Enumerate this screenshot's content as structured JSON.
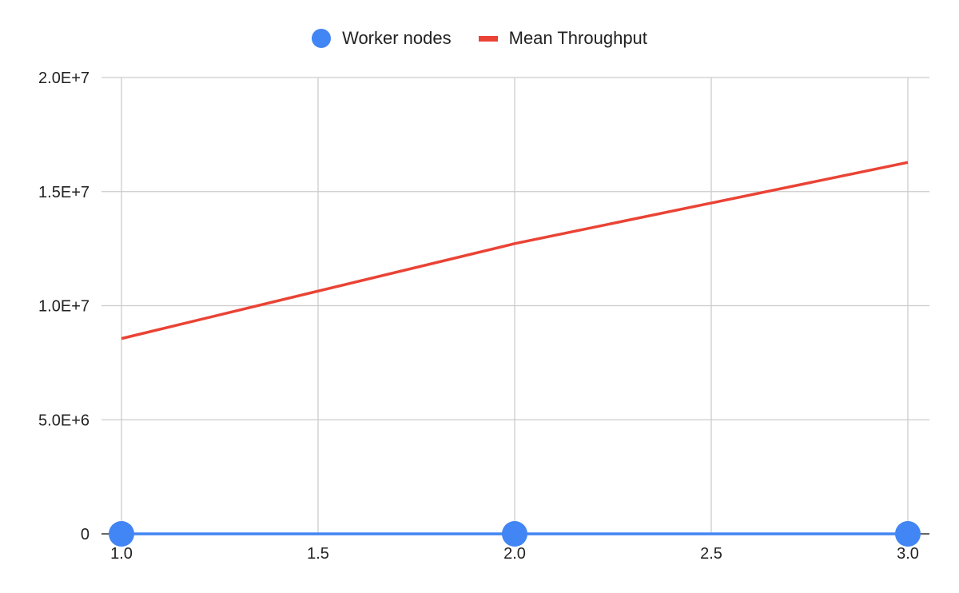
{
  "chart_data": {
    "type": "line",
    "title": "",
    "xlabel": "",
    "ylabel": "",
    "xlim": [
      1.0,
      3.0
    ],
    "ylim": [
      0,
      20000000
    ],
    "x_ticks": [
      "1.0",
      "1.5",
      "2.0",
      "2.5",
      "3.0"
    ],
    "x_tick_values": [
      1.0,
      1.5,
      2.0,
      2.5,
      3.0
    ],
    "y_ticks": [
      "0",
      "5.0E+6",
      "1.0E+7",
      "1.5E+7",
      "2.0E+7"
    ],
    "y_tick_values": [
      0,
      5000000,
      10000000,
      15000000,
      20000000
    ],
    "grid": true,
    "legend_position": "top-center",
    "series": [
      {
        "name": "Worker nodes",
        "style": "scatter-line",
        "color": "#4285f4",
        "x": [
          1,
          2,
          3
        ],
        "y": [
          1,
          2,
          3
        ]
      },
      {
        "name": "Mean Throughput",
        "style": "line",
        "color": "#ea4335",
        "x": [
          1,
          2,
          3
        ],
        "y": [
          8560000,
          12720000,
          16280000
        ]
      }
    ]
  },
  "colors": {
    "grid": "#cccccc",
    "axis": "#333333",
    "text": "#222222"
  }
}
